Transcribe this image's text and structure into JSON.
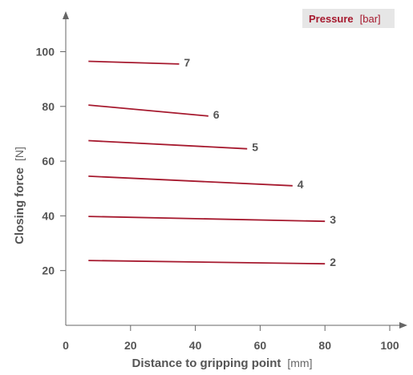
{
  "colors": {
    "series": "#a6192e",
    "axis": "#666666",
    "text": "#555555",
    "legend_bg": "#e6e6e6"
  },
  "legend": {
    "title": "Pressure",
    "unit": "[bar]"
  },
  "chart_data": {
    "type": "line",
    "xlabel": "Distance to gripping point",
    "xlabel_unit": "[mm]",
    "ylabel": "Closing force",
    "ylabel_unit": "[N]",
    "xlim": [
      0,
      105
    ],
    "ylim": [
      0,
      110
    ],
    "xticks": [
      0,
      20,
      40,
      60,
      80,
      100
    ],
    "yticks": [
      20,
      40,
      60,
      80,
      100
    ],
    "grid": false,
    "series": [
      {
        "name": "7",
        "x": [
          7,
          35
        ],
        "y": [
          96.5,
          95.5
        ]
      },
      {
        "name": "6",
        "x": [
          7,
          44
        ],
        "y": [
          80.5,
          76.5
        ]
      },
      {
        "name": "5",
        "x": [
          7,
          56
        ],
        "y": [
          67.5,
          64.5
        ]
      },
      {
        "name": "4",
        "x": [
          7,
          70
        ],
        "y": [
          54.5,
          51
        ]
      },
      {
        "name": "3",
        "x": [
          7,
          80
        ],
        "y": [
          39.8,
          38
        ]
      },
      {
        "name": "2",
        "x": [
          7,
          80
        ],
        "y": [
          23.7,
          22.5
        ]
      }
    ]
  }
}
